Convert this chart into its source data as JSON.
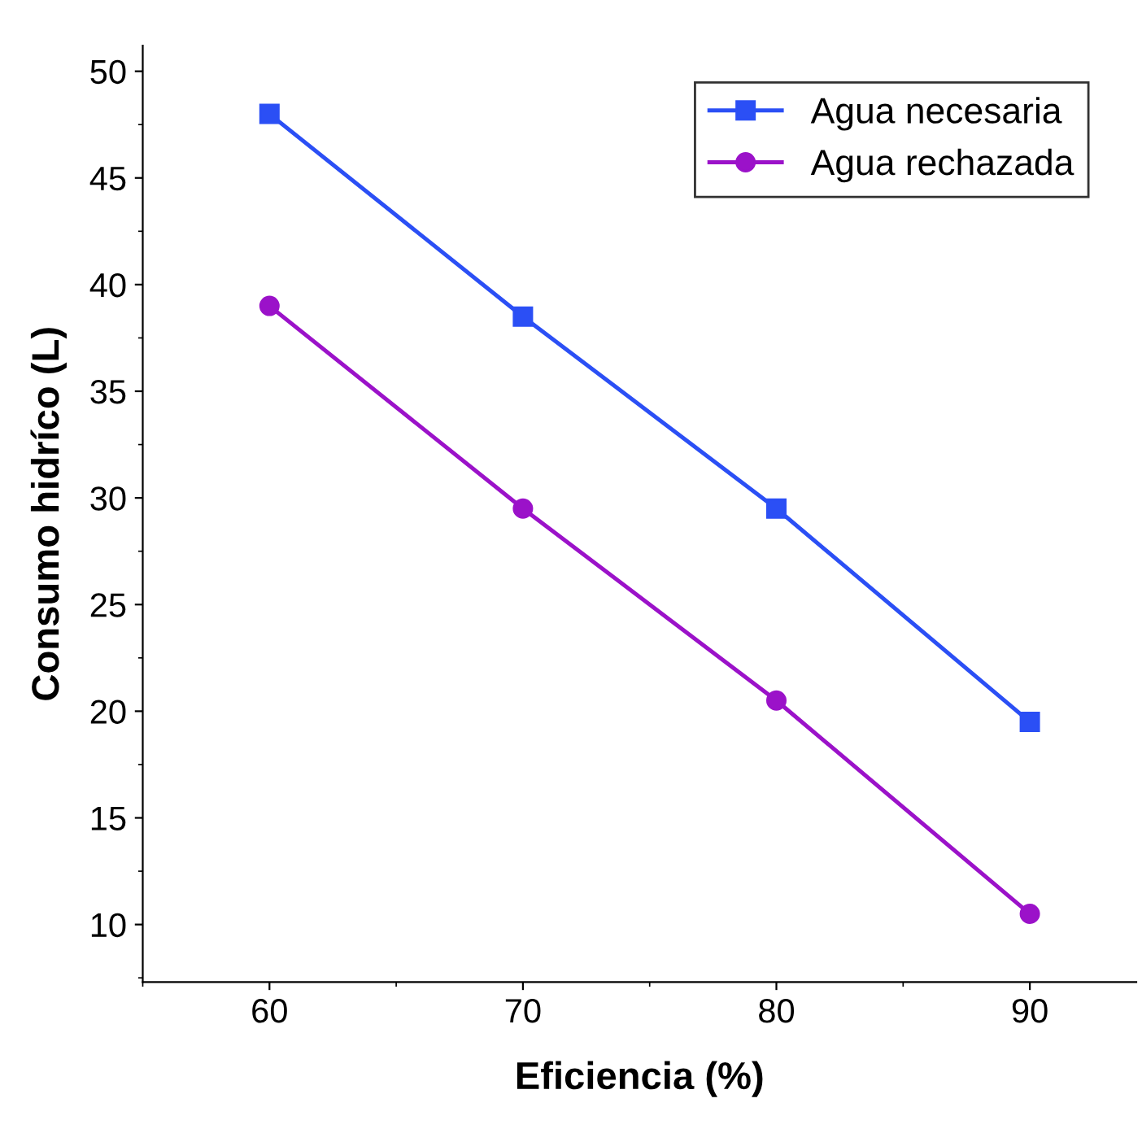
{
  "chart_data": {
    "type": "line",
    "xlabel": "Eficiencia (%)",
    "ylabel": "Consumo hidríco (L)",
    "x": [
      60,
      70,
      80,
      90
    ],
    "series": [
      {
        "name": "Agua necesaria",
        "color": "#2b4ff5",
        "values": [
          48,
          38.5,
          29.5,
          19.5
        ],
        "marker": "square"
      },
      {
        "name": "Agua rechazada",
        "color": "#9b12c9",
        "values": [
          39,
          29.5,
          20.5,
          10.5
        ],
        "marker": "circle"
      }
    ],
    "xlim": [
      55,
      94.2
    ],
    "ylim": [
      7.3,
      51.2
    ],
    "xticks": [
      60,
      70,
      80,
      90
    ],
    "yticks": [
      10,
      15,
      20,
      25,
      30,
      35,
      40,
      45,
      50
    ],
    "grid": false,
    "legend": "top right",
    "line_style": "solid"
  }
}
